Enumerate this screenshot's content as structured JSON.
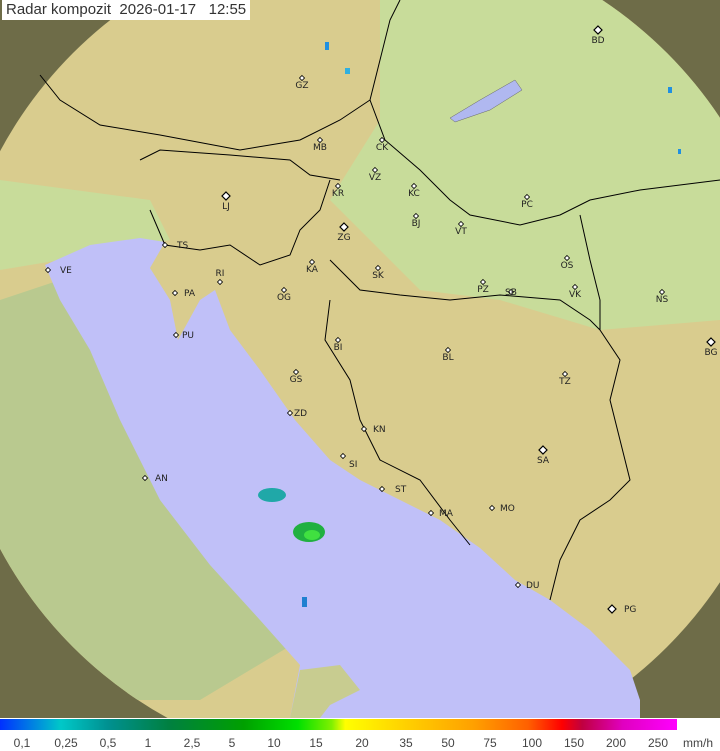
{
  "title": "Radar kompozit  2026-01-17   12:55",
  "legend": {
    "unit": "mm/h",
    "ticks": [
      "0,1",
      "0,25",
      "0,5",
      "1",
      "2,5",
      "5",
      "10",
      "15",
      "20",
      "35",
      "50",
      "75",
      "100",
      "150",
      "200",
      "250"
    ]
  },
  "colors": {
    "sea": "#c0c0f8",
    "land": "#d9cc8e",
    "lowland": "#c8dc9a",
    "outside": "#6e6c48",
    "border": "#000000"
  },
  "cities": [
    {
      "code": "BD",
      "capital": true
    },
    {
      "code": "GZ"
    },
    {
      "code": "MB"
    },
    {
      "code": "CK"
    },
    {
      "code": "VZ"
    },
    {
      "code": "KR"
    },
    {
      "code": "KC"
    },
    {
      "code": "LJ",
      "capital": true
    },
    {
      "code": "PC"
    },
    {
      "code": "BJ"
    },
    {
      "code": "VT"
    },
    {
      "code": "ZG",
      "capital": true
    },
    {
      "code": "TS"
    },
    {
      "code": "VE"
    },
    {
      "code": "KA"
    },
    {
      "code": "SK"
    },
    {
      "code": "OS"
    },
    {
      "code": "RI"
    },
    {
      "code": "PA"
    },
    {
      "code": "PZ"
    },
    {
      "code": "SB"
    },
    {
      "code": "VK"
    },
    {
      "code": "NS"
    },
    {
      "code": "OG"
    },
    {
      "code": "PU"
    },
    {
      "code": "BI"
    },
    {
      "code": "BL"
    },
    {
      "code": "BG",
      "capital": true
    },
    {
      "code": "GS"
    },
    {
      "code": "TZ"
    },
    {
      "code": "ZD"
    },
    {
      "code": "KN"
    },
    {
      "code": "SA",
      "capital": true
    },
    {
      "code": "AN"
    },
    {
      "code": "SI"
    },
    {
      "code": "ST"
    },
    {
      "code": "MA"
    },
    {
      "code": "MO"
    },
    {
      "code": "DU"
    },
    {
      "code": "PG",
      "capital": true
    }
  ]
}
